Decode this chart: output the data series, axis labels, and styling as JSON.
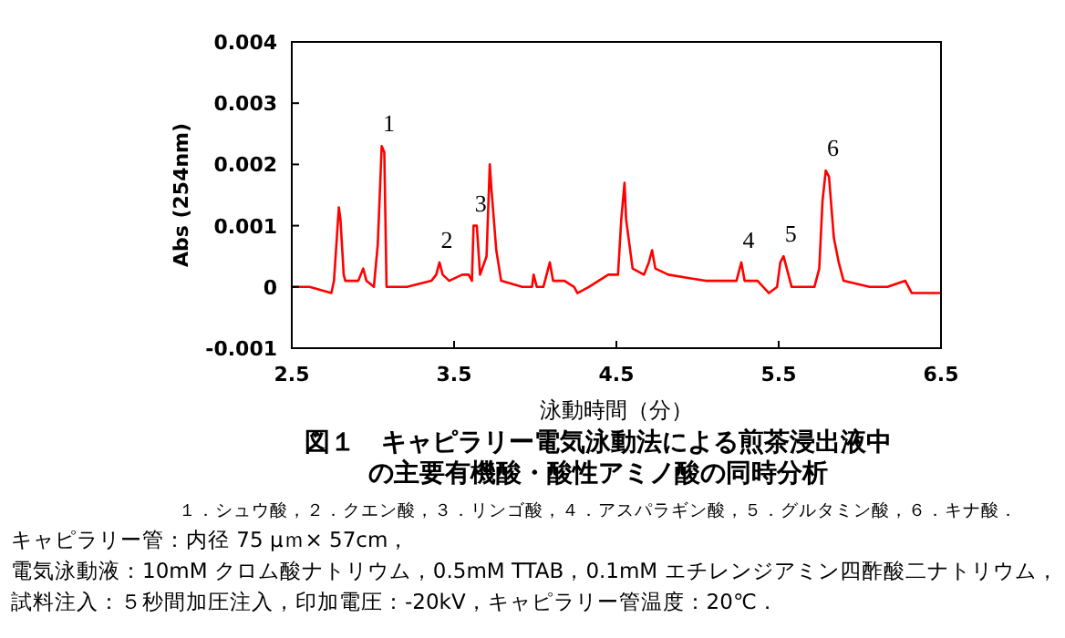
{
  "chart_data": {
    "type": "line",
    "title": "図１　キャピラリー電気泳動法による煎茶浸出液中の主要有機酸・酸性アミノ酸の同時分析",
    "xlabel": "泳動時間（分）",
    "ylabel": "Abs (254nm)",
    "xlim": [
      2.5,
      6.5
    ],
    "xticks": [
      2.5,
      3.5,
      4.5,
      5.5,
      6.5
    ],
    "ylim": [
      -0.001,
      0.004
    ],
    "yticks": [
      -0.001,
      0,
      0.001,
      0.002,
      0.003,
      0.004
    ],
    "grid": false,
    "marker": "none",
    "line_style": "solid",
    "series": [
      {
        "color": "#ff0000",
        "x": [
          2.5,
          2.61,
          2.744,
          2.76,
          2.79,
          2.8,
          2.82,
          2.83,
          2.91,
          2.94,
          2.96,
          3.006,
          3.03,
          3.054,
          3.07,
          3.084,
          3.21,
          3.36,
          3.39,
          3.41,
          3.43,
          3.47,
          3.55,
          3.59,
          3.61,
          3.62,
          3.64,
          3.66,
          3.7,
          3.72,
          3.73,
          3.76,
          3.79,
          3.92,
          3.98,
          3.99,
          4.01,
          4.05,
          4.09,
          4.11,
          4.18,
          4.24,
          4.26,
          4.33,
          4.39,
          4.45,
          4.51,
          4.53,
          4.55,
          4.56,
          4.6,
          4.67,
          4.7,
          4.72,
          4.74,
          4.82,
          5.05,
          5.2,
          5.24,
          5.27,
          5.29,
          5.37,
          5.44,
          5.49,
          5.51,
          5.53,
          5.58,
          5.68,
          5.72,
          5.75,
          5.77,
          5.79,
          5.81,
          5.84,
          5.87,
          5.9,
          6.06,
          6.17,
          6.28,
          6.32,
          6.43,
          6.5
        ],
        "values": [
          0,
          0,
          -0.0001,
          0.0001,
          0.0013,
          0.0011,
          0.0002,
          0.0001,
          0.0001,
          0.0003,
          0.0001,
          0,
          0.0007,
          0.0023,
          0.0022,
          0,
          0,
          0.0001,
          0.0002,
          0.0004,
          0.0002,
          0.0001,
          0.0002,
          0.0002,
          0.0001,
          0.001,
          0.001,
          0.0002,
          0.0005,
          0.002,
          0.0016,
          0.0006,
          0.0001,
          0,
          0,
          0.0002,
          0,
          0,
          0.0004,
          0.0001,
          0.0001,
          0,
          -0.0001,
          0,
          0.0001,
          0.0002,
          0.0002,
          0.0011,
          0.0017,
          0.0011,
          0.0003,
          0.0002,
          0.0004,
          0.0006,
          0.0003,
          0.0002,
          0.0001,
          0.0001,
          0.0001,
          0.0004,
          0.0001,
          0.0001,
          -0.0001,
          0,
          0.0004,
          0.0005,
          0,
          0,
          0,
          0.0003,
          0.0014,
          0.0019,
          0.0018,
          0.0008,
          0.0004,
          0.0001,
          0,
          0,
          0.0001,
          -0.0001,
          -0.0001,
          -0.0001
        ]
      }
    ],
    "annotations": [
      {
        "text": "1",
        "x": 3.054,
        "y": 0.0023
      },
      {
        "text": "2",
        "x": 3.41,
        "y": 0.0004
      },
      {
        "text": "3",
        "x": 3.62,
        "y": 0.001
      },
      {
        "text": "4",
        "x": 5.27,
        "y": 0.0004
      },
      {
        "text": "5",
        "x": 5.53,
        "y": 0.0005
      },
      {
        "text": "6",
        "x": 5.79,
        "y": 0.0019
      },
      "１．シュウ酸，２．クエン酸，３．リンゴ酸，４．アスパラギン酸，５．グルタミン酸，６．キナ酸．",
      "キャピラリー管：内径 75 μｍ× 57cm，",
      "電気泳動液：10mM クロム酸ナトリウム，0.5mM TTAB，0.1mM エチレンジアミン四酢酸二ナトリウム，",
      "試料注入：５秒間加圧注入，印加電圧：-20kV，キャピラリー管温度：20℃．"
    ]
  }
}
